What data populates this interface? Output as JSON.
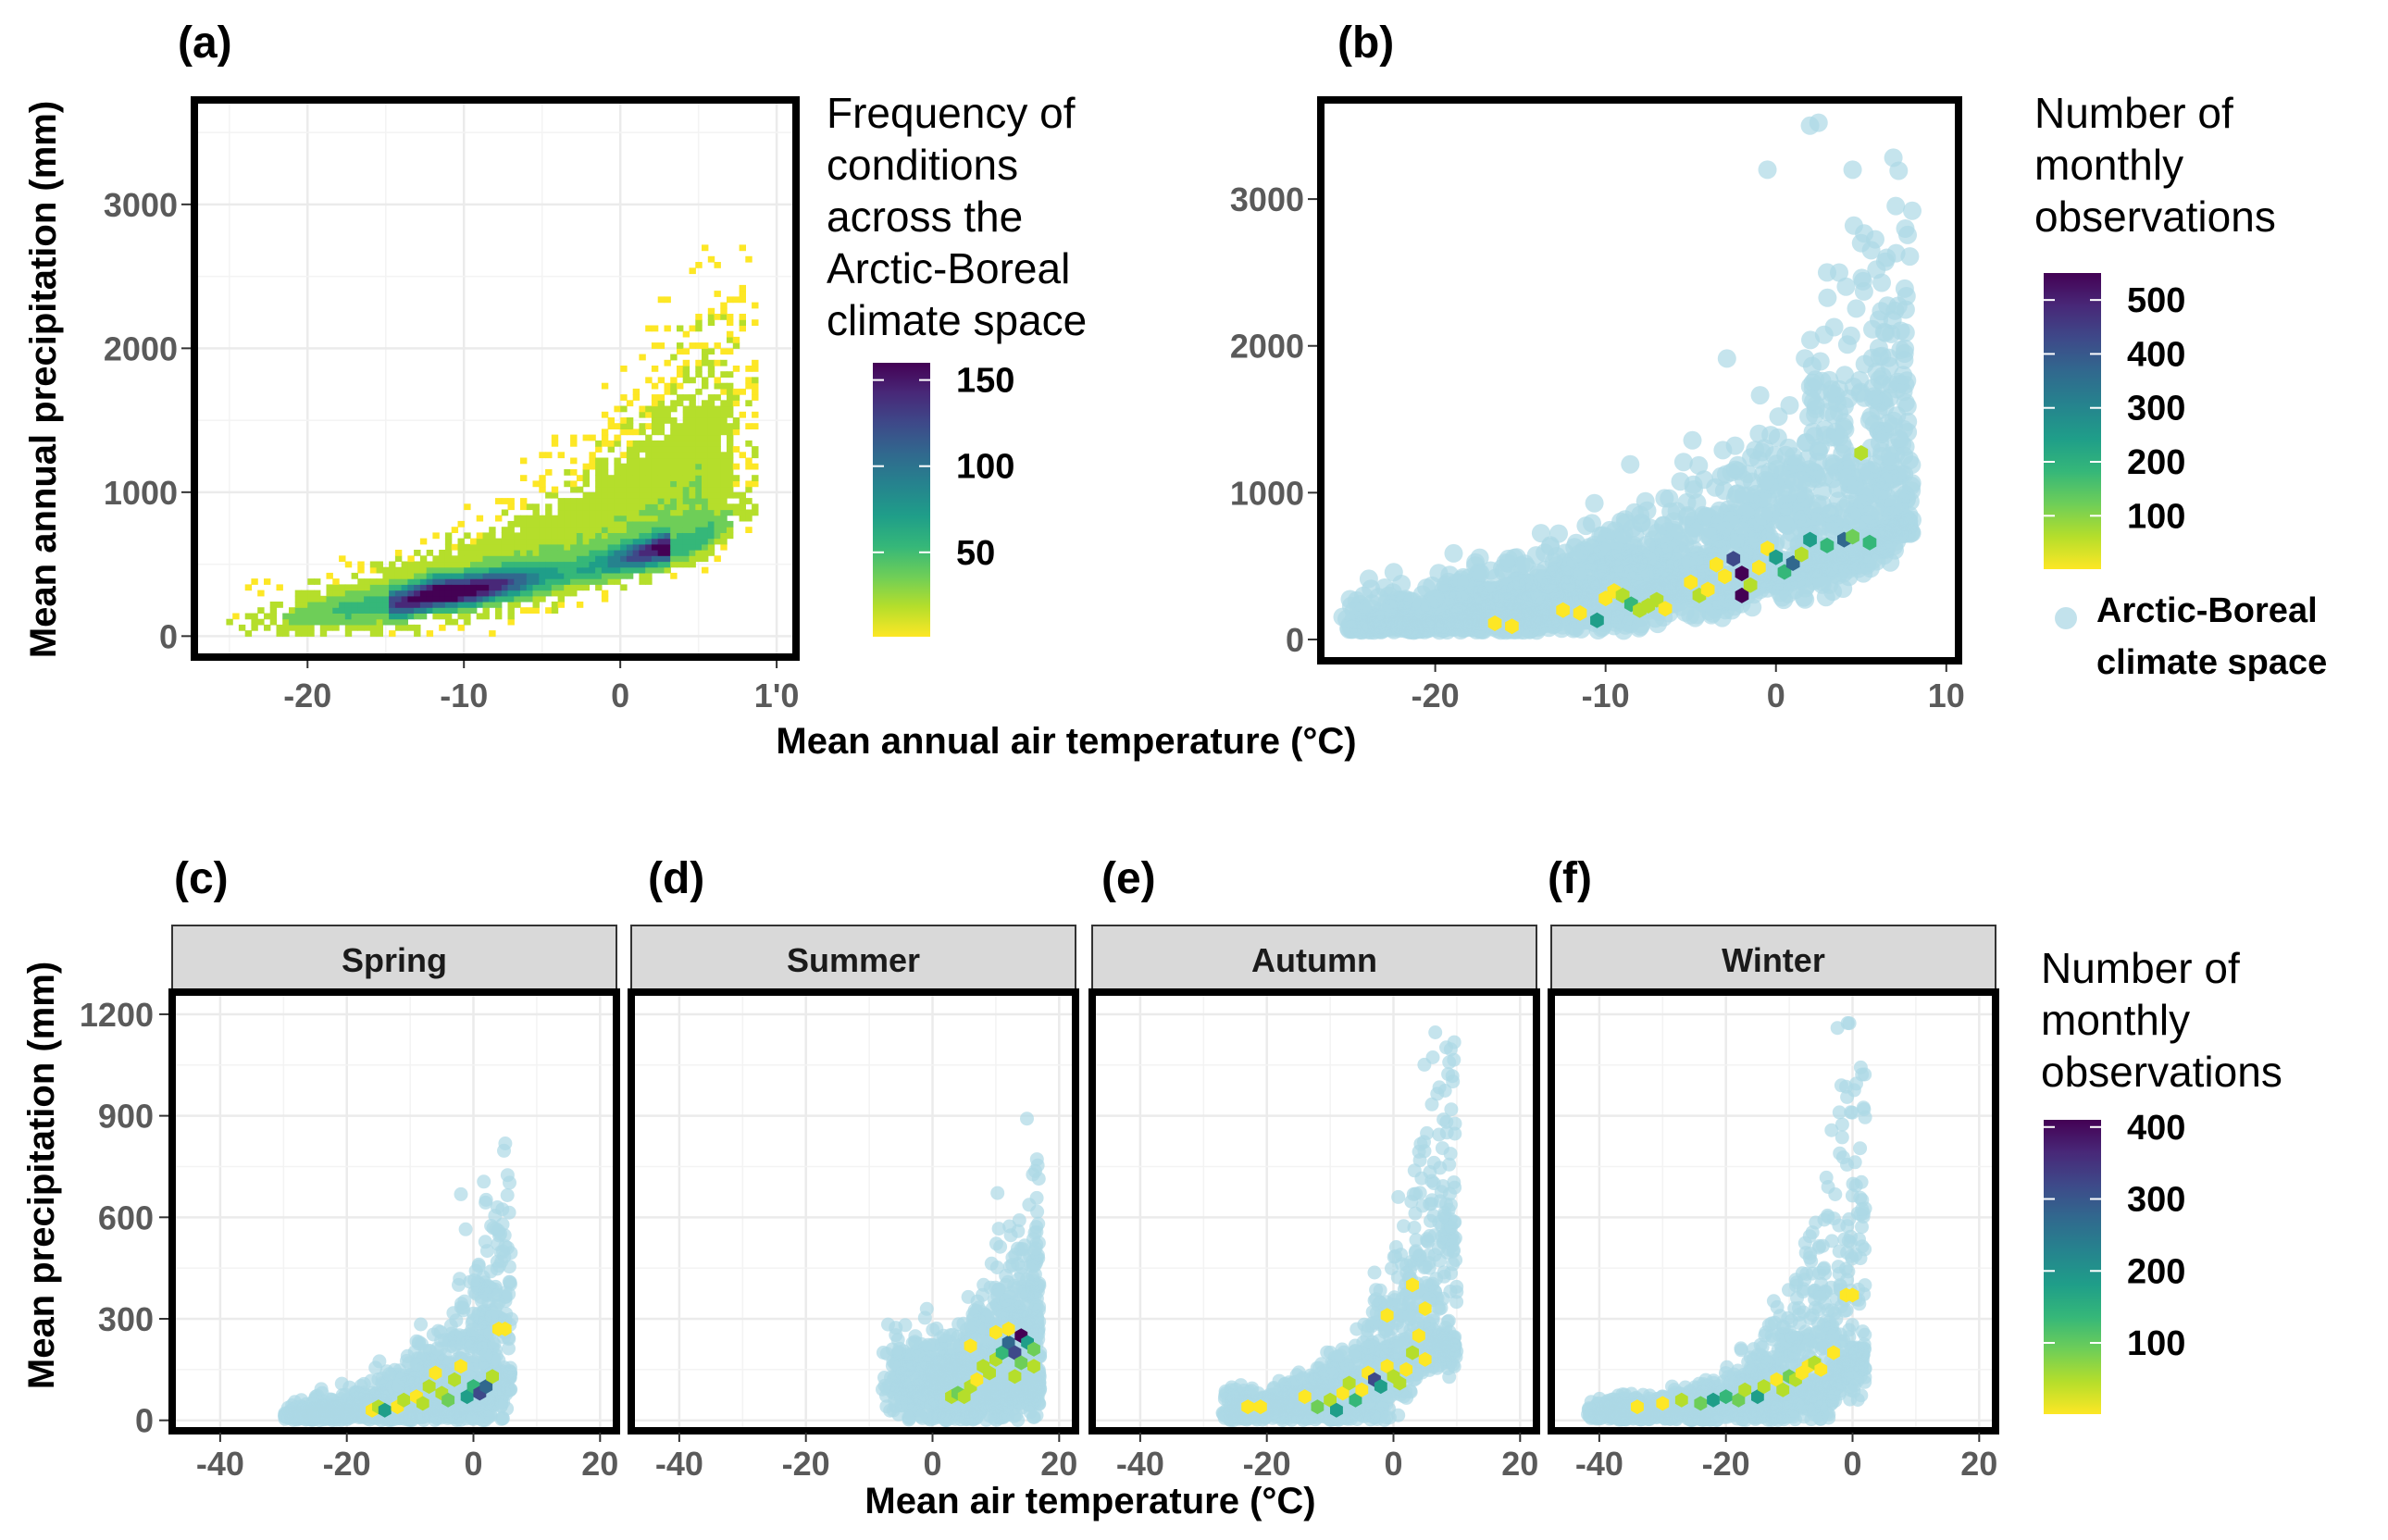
{
  "colors": {
    "climate_space": "#add8e6",
    "viridis": [
      "#fde725",
      "#b5de2b",
      "#6ece58",
      "#35b779",
      "#1f9e89",
      "#26828e",
      "#31688e",
      "#3e4989",
      "#482878",
      "#440154"
    ],
    "frame": "#000000",
    "grid": "#ebebeb",
    "strip_fill": "#d9d9d9"
  },
  "panels": {
    "a": {
      "letter": "(a)"
    },
    "b": {
      "letter": "(b)"
    },
    "c": {
      "letter": "(c)",
      "strip": "Spring"
    },
    "d": {
      "letter": "(d)",
      "strip": "Summer"
    },
    "e": {
      "letter": "(e)",
      "strip": "Autumn"
    },
    "f": {
      "letter": "(f)",
      "strip": "Winter"
    }
  },
  "axes_top": {
    "ylabel": "Mean annual precipitation (mm)",
    "xlabel": "Mean annual air temperature (°C)"
  },
  "axes_bottom": {
    "ylabel": "Mean precipitation (mm)",
    "xlabel": "Mean air temperature (°C)"
  },
  "legend_a": {
    "title_lines": [
      "Frequency of",
      "conditions",
      "across the",
      "Arctic-Boreal",
      "climate space"
    ],
    "ticks": [
      "150",
      "100",
      "50"
    ]
  },
  "legend_b": {
    "title_lines": [
      "Number of",
      "monthly",
      "observations"
    ],
    "ticks": [
      "500",
      "400",
      "300",
      "200",
      "100"
    ],
    "key_lines": [
      "Arctic-Boreal",
      "climate space"
    ]
  },
  "legend_cf": {
    "title_lines": [
      "Number of",
      "monthly",
      "observations"
    ],
    "ticks": [
      "400",
      "300",
      "200",
      "100"
    ]
  },
  "chart_data": [
    {
      "panel": "a",
      "type": "heatmap",
      "title": "Frequency of conditions across the Arctic-Boreal climate space",
      "xlabel": "Mean annual air temperature (°C)",
      "ylabel": "Mean annual precipitation (mm)",
      "xlim": [
        -27,
        11
      ],
      "ylim": [
        -120,
        3700
      ],
      "x_ticks": [
        -20,
        -10,
        0,
        10
      ],
      "x_tick_labels": [
        "-20",
        "-10",
        "0",
        "1'0"
      ],
      "y_ticks": [
        0,
        1000,
        2000,
        3000
      ],
      "y_tick_labels": [
        "0",
        "1000",
        "2000",
        "3000"
      ],
      "color_range": [
        1,
        160
      ],
      "color_ticks": [
        50,
        100,
        150
      ],
      "density_ridge": [
        [
          -14,
          220
        ],
        [
          -12,
          280
        ],
        [
          -10,
          300
        ],
        [
          -8,
          340
        ],
        [
          -6,
          380
        ],
        [
          -4,
          420
        ],
        [
          -2,
          470
        ],
        [
          0,
          520
        ],
        [
          2,
          580
        ],
        [
          4,
          620
        ]
      ]
    },
    {
      "panel": "b",
      "type": "scatter",
      "xlabel": "Mean annual air temperature (°C)",
      "ylabel": "Mean annual precipitation (mm)",
      "xlim": [
        -26.5,
        10.5
      ],
      "ylim": [
        -120,
        3650
      ],
      "x_ticks": [
        -20,
        -10,
        0,
        10
      ],
      "x_tick_labels": [
        "-20",
        "-10",
        "0",
        "10"
      ],
      "y_ticks": [
        0,
        1000,
        2000,
        3000
      ],
      "y_tick_labels": [
        "0",
        "1000",
        "2000",
        "3000"
      ],
      "color_range": [
        1,
        550
      ],
      "color_ticks": [
        100,
        200,
        300,
        400,
        500
      ],
      "legend_key": "Arctic-Boreal climate space",
      "hex_observations": [
        [
          -16.5,
          110,
          20
        ],
        [
          -15.5,
          90,
          20
        ],
        [
          -12.5,
          200,
          15
        ],
        [
          -11.5,
          180,
          20
        ],
        [
          -10.5,
          130,
          250
        ],
        [
          -10,
          280,
          20
        ],
        [
          -9.5,
          330,
          30
        ],
        [
          -9,
          300,
          40
        ],
        [
          -8.5,
          240,
          160
        ],
        [
          -8,
          200,
          90
        ],
        [
          -7.5,
          230,
          60
        ],
        [
          -7,
          270,
          50
        ],
        [
          -6.5,
          210,
          20
        ],
        [
          -5,
          390,
          20
        ],
        [
          -4.5,
          300,
          50
        ],
        [
          -4,
          340,
          20
        ],
        [
          -3.5,
          510,
          20
        ],
        [
          -3,
          430,
          30
        ],
        [
          -2.5,
          550,
          400
        ],
        [
          -2,
          450,
          520
        ],
        [
          -2,
          300,
          530
        ],
        [
          -1.5,
          370,
          40
        ],
        [
          -1,
          490,
          20
        ],
        [
          -0.5,
          620,
          20
        ],
        [
          0,
          560,
          250
        ],
        [
          0.5,
          460,
          200
        ],
        [
          1,
          520,
          340
        ],
        [
          1.5,
          580,
          40
        ],
        [
          2,
          680,
          250
        ],
        [
          3,
          640,
          200
        ],
        [
          4,
          680,
          350
        ],
        [
          4.5,
          700,
          100
        ],
        [
          5.5,
          660,
          180
        ],
        [
          5,
          1270,
          60
        ]
      ]
    },
    {
      "panel": "c",
      "type": "scatter",
      "season": "Spring",
      "xlabel": "Mean air temperature (°C)",
      "ylabel": "Mean precipitation (mm)",
      "xlim": [
        -47,
        22
      ],
      "ylim": [
        -20,
        1260
      ],
      "x_ticks": [
        -40,
        -20,
        0,
        20
      ],
      "y_ticks": [
        0,
        300,
        600,
        900,
        1200
      ],
      "x_tick_labels": [
        "-40",
        "-20",
        "0",
        "20"
      ],
      "y_tick_labels": [
        "0",
        "300",
        "600",
        "900",
        "1200"
      ],
      "hex_observations": [
        [
          -16,
          30,
          20
        ],
        [
          -15,
          40,
          60
        ],
        [
          -14,
          30,
          200
        ],
        [
          -12,
          40,
          20
        ],
        [
          -11,
          60,
          40
        ],
        [
          -9,
          70,
          20
        ],
        [
          -8,
          50,
          60
        ],
        [
          -7,
          100,
          30
        ],
        [
          -6,
          140,
          20
        ],
        [
          -5,
          80,
          30
        ],
        [
          -4,
          60,
          100
        ],
        [
          -3,
          120,
          60
        ],
        [
          -2,
          160,
          20
        ],
        [
          -1,
          70,
          200
        ],
        [
          0,
          100,
          150
        ],
        [
          1,
          80,
          300
        ],
        [
          2,
          100,
          250
        ],
        [
          3,
          130,
          60
        ],
        [
          4,
          270,
          20
        ],
        [
          5,
          270,
          20
        ]
      ]
    },
    {
      "panel": "d",
      "type": "scatter",
      "season": "Summer",
      "xlabel": "Mean air temperature (°C)",
      "ylabel": "Mean precipitation (mm)",
      "xlim": [
        -47,
        22
      ],
      "ylim": [
        -20,
        1260
      ],
      "x_ticks": [
        -40,
        -20,
        0,
        20
      ],
      "y_ticks": [
        0,
        300,
        600,
        900,
        1200
      ],
      "x_tick_labels": [
        "-40",
        "-20",
        "0",
        "20"
      ],
      "y_tick_labels": [
        "0",
        "300",
        "600",
        "900",
        "1200"
      ],
      "hex_observations": [
        [
          3,
          70,
          60
        ],
        [
          4,
          80,
          100
        ],
        [
          5,
          70,
          40
        ],
        [
          6,
          100,
          30
        ],
        [
          7,
          120,
          20
        ],
        [
          8,
          160,
          60
        ],
        [
          9,
          140,
          30
        ],
        [
          10,
          180,
          40
        ],
        [
          11,
          200,
          120
        ],
        [
          12,
          230,
          250
        ],
        [
          13,
          200,
          300
        ],
        [
          14,
          250,
          400
        ],
        [
          15,
          230,
          200
        ],
        [
          14,
          170,
          100
        ],
        [
          13,
          130,
          60
        ],
        [
          16,
          160,
          30
        ],
        [
          12,
          270,
          20
        ],
        [
          6,
          220,
          20
        ],
        [
          10,
          260,
          20
        ],
        [
          16,
          210,
          80
        ]
      ]
    },
    {
      "panel": "e",
      "type": "scatter",
      "season": "Autumn",
      "xlabel": "Mean air temperature (°C)",
      "ylabel": "Mean precipitation (mm)",
      "xlim": [
        -47,
        22
      ],
      "ylim": [
        -20,
        1260
      ],
      "x_ticks": [
        -40,
        -20,
        0,
        20
      ],
      "y_ticks": [
        0,
        300,
        600,
        900,
        1200
      ],
      "x_tick_labels": [
        "-40",
        "-20",
        "0",
        "20"
      ],
      "y_tick_labels": [
        "0",
        "300",
        "600",
        "900",
        "1200"
      ],
      "hex_observations": [
        [
          -23,
          40,
          20
        ],
        [
          -21,
          40,
          20
        ],
        [
          -14,
          70,
          20
        ],
        [
          -12,
          40,
          100
        ],
        [
          -10,
          60,
          60
        ],
        [
          -9,
          30,
          200
        ],
        [
          -8,
          80,
          20
        ],
        [
          -7,
          110,
          40
        ],
        [
          -6,
          60,
          150
        ],
        [
          -5,
          90,
          20
        ],
        [
          -4,
          140,
          20
        ],
        [
          -3,
          120,
          300
        ],
        [
          -2,
          100,
          200
        ],
        [
          -1,
          160,
          20
        ],
        [
          0,
          130,
          60
        ],
        [
          1,
          110,
          30
        ],
        [
          2,
          150,
          20
        ],
        [
          3,
          200,
          40
        ],
        [
          4,
          250,
          20
        ],
        [
          5,
          180,
          20
        ],
        [
          3,
          400,
          20
        ],
        [
          -1,
          310,
          20
        ],
        [
          5,
          330,
          20
        ]
      ]
    },
    {
      "panel": "f",
      "type": "scatter",
      "season": "Winter",
      "xlabel": "Mean air temperature (°C)",
      "ylabel": "Mean precipitation (mm)",
      "xlim": [
        -47,
        22
      ],
      "ylim": [
        -20,
        1260
      ],
      "x_ticks": [
        -40,
        -20,
        0,
        20
      ],
      "y_ticks": [
        0,
        300,
        600,
        900,
        1200
      ],
      "x_tick_labels": [
        "-40",
        "-20",
        "0",
        "20"
      ],
      "y_tick_labels": [
        "0",
        "300",
        "600",
        "900",
        "1200"
      ],
      "hex_observations": [
        [
          -34,
          40,
          20
        ],
        [
          -30,
          50,
          20
        ],
        [
          -27,
          60,
          30
        ],
        [
          -24,
          50,
          80
        ],
        [
          -22,
          60,
          200
        ],
        [
          -20,
          70,
          150
        ],
        [
          -18,
          60,
          100
        ],
        [
          -17,
          90,
          30
        ],
        [
          -15,
          70,
          200
        ],
        [
          -14,
          100,
          40
        ],
        [
          -12,
          120,
          20
        ],
        [
          -11,
          90,
          60
        ],
        [
          -10,
          130,
          100
        ],
        [
          -9,
          120,
          30
        ],
        [
          -8,
          140,
          20
        ],
        [
          -7,
          160,
          20
        ],
        [
          -6,
          170,
          40
        ],
        [
          -5,
          150,
          20
        ],
        [
          -3,
          200,
          20
        ],
        [
          -1,
          370,
          20
        ],
        [
          0,
          370,
          20
        ]
      ]
    }
  ]
}
